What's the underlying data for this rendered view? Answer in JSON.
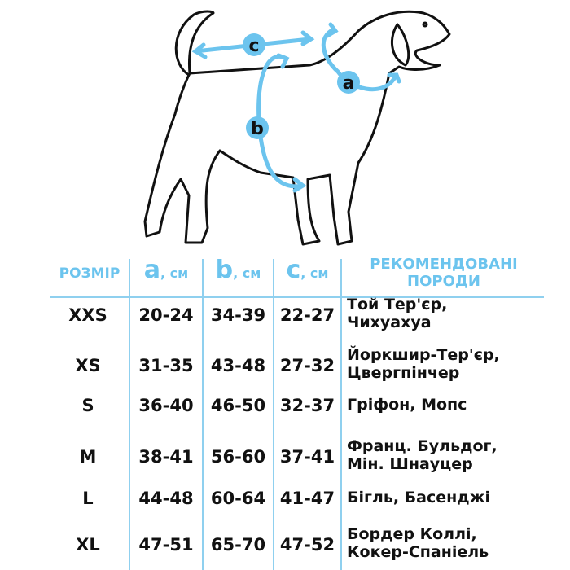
{
  "colors": {
    "accent": "#6cc4ee",
    "text": "#111111"
  },
  "diagram": {
    "labels": {
      "a": "a",
      "b": "b",
      "c": "c"
    }
  },
  "table": {
    "headers": {
      "size": "РОЗМІР",
      "a_letter": "a",
      "a_unit": ", см",
      "b_letter": "b",
      "b_unit": ", см",
      "c_letter": "c",
      "c_unit": ", см",
      "breeds_line1": "РЕКОМЕНДОВАНІ",
      "breeds_line2": "ПОРОДИ"
    },
    "rows": [
      {
        "size": "XXS",
        "a": "20-24",
        "b": "34-39",
        "c": "22-27",
        "breeds": [
          "Той Тер'єр,",
          "Чихуахуа"
        ]
      },
      {
        "size": "XS",
        "a": "31-35",
        "b": "43-48",
        "c": "27-32",
        "breeds": [
          "Йоркшир-Тер'єр,",
          "Цвергпінчер"
        ]
      },
      {
        "size": "S",
        "a": "36-40",
        "b": "46-50",
        "c": "32-37",
        "breeds": [
          "Гріфон, Мопс"
        ]
      },
      {
        "size": "M",
        "a": "38-41",
        "b": "56-60",
        "c": "37-41",
        "breeds": [
          "Франц. Бульдог,",
          "Мін. Шнауцер"
        ]
      },
      {
        "size": "L",
        "a": "44-48",
        "b": "60-64",
        "c": "41-47",
        "breeds": [
          "Бігль, Басенджі"
        ]
      },
      {
        "size": "XL",
        "a": "47-51",
        "b": "65-70",
        "c": "47-52",
        "breeds": [
          "Бордер Коллі,",
          "Кокер-Спаніель"
        ]
      }
    ]
  }
}
